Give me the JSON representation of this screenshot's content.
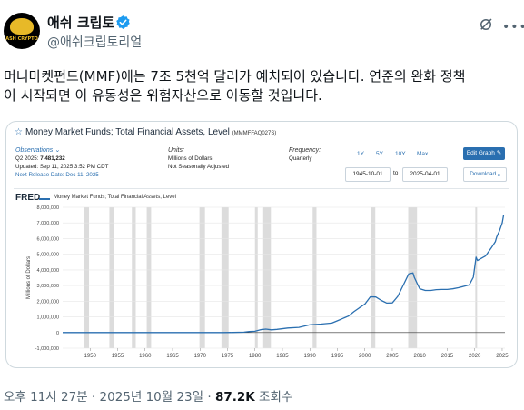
{
  "tweet": {
    "author_name": "애쉬 크립토",
    "handle": "@애쉬크립토리얼",
    "avatar_text": "ASH CRYPTO",
    "text_line1": "머니마켓펀드(MMF)에는 7조 5천억 달러가 예치되어 있습니다. 연준의 완화 정책",
    "text_line2": "이 시작되면 이 유동성은 위험자산으로 이동할 것입니다.",
    "time": "오후 11시 27분",
    "sep1": "·",
    "date": "2025년 10월 23일",
    "sep2": "·",
    "views": "87.2K",
    "views_label": "조회수"
  },
  "fred": {
    "title": "Money Market Funds; Total Financial Assets, Level",
    "series_id": "(MMMFFAQ027S)",
    "observations_label": "Observations",
    "obs_period": "Q2 2025:",
    "obs_value": "7,481,232",
    "updated": "Updated: Sep 11, 2025 3:52 PM CDT",
    "next_release": "Next Release Date: Dec 11, 2025",
    "units_label": "Units:",
    "units_1": "Millions of Dollars,",
    "units_2": "Not Seasonally Adjusted",
    "frequency_label": "Frequency:",
    "frequency": "Quarterly",
    "range_buttons": [
      "1Y",
      "5Y",
      "10Y",
      "Max"
    ],
    "date_from": "1945-10-01",
    "date_to_label": "to",
    "date_to": "2025-04-01",
    "edit_graph": "Edit Graph",
    "download": "Download",
    "logo": "FRED",
    "legend": "Money Market Funds; Total Financial Assets, Level",
    "accent": "#2a6fb0"
  },
  "chart_data": {
    "type": "line",
    "title": "",
    "ylabel": "Millions of Dollars",
    "xlabel": "",
    "ylim": [
      -1000000,
      8000000
    ],
    "xlim": [
      1945,
      2025.5
    ],
    "x_ticks": [
      1950,
      1955,
      1960,
      1965,
      1970,
      1975,
      1980,
      1985,
      1990,
      1995,
      2000,
      2005,
      2010,
      2015,
      2020,
      2025
    ],
    "y_ticks": [
      -1000000,
      0,
      1000000,
      2000000,
      3000000,
      4000000,
      5000000,
      6000000,
      7000000,
      8000000
    ],
    "y_tick_labels": [
      "-1,000,000",
      "0",
      "1,000,000",
      "2,000,000",
      "3,000,000",
      "4,000,000",
      "5,000,000",
      "6,000,000",
      "7,000,000",
      "8,000,000"
    ],
    "recessions": [
      [
        1948.9,
        1949.8
      ],
      [
        1953.5,
        1954.4
      ],
      [
        1957.6,
        1958.3
      ],
      [
        1960.3,
        1961.1
      ],
      [
        1969.9,
        1970.9
      ],
      [
        1973.9,
        1975.2
      ],
      [
        1980.0,
        1980.5
      ],
      [
        1981.5,
        1982.9
      ],
      [
        1990.5,
        1991.2
      ],
      [
        2001.2,
        2001.9
      ],
      [
        2007.9,
        2009.5
      ],
      [
        2020.1,
        2020.4
      ]
    ],
    "series": [
      {
        "color": "#2a6fb0",
        "x": [
          1945,
          1974,
          1976,
          1978,
          1979,
          1980,
          1981,
          1982,
          1983,
          1984,
          1986,
          1988,
          1990,
          1992,
          1994,
          1995,
          1996,
          1997,
          1998,
          1999,
          2000,
          2001,
          2002,
          2003,
          2004,
          2005,
          2006,
          2007,
          2008,
          2008.75,
          2009,
          2009.5,
          2010,
          2011,
          2012,
          2013,
          2014,
          2015,
          2016,
          2017,
          2018,
          2019,
          2019.75,
          2020.25,
          2020.5,
          2021,
          2022,
          2023,
          2023.75,
          2024,
          2024.5,
          2025,
          2025.25
        ],
        "values": [
          0,
          0,
          5000,
          20000,
          60000,
          80000,
          180000,
          220000,
          170000,
          200000,
          290000,
          330000,
          490000,
          540000,
          600000,
          750000,
          900000,
          1050000,
          1330000,
          1580000,
          1810000,
          2280000,
          2270000,
          2050000,
          1880000,
          1890000,
          2310000,
          3030000,
          3750000,
          3810000,
          3530000,
          3150000,
          2800000,
          2690000,
          2690000,
          2740000,
          2750000,
          2750000,
          2790000,
          2860000,
          2950000,
          3040000,
          3530000,
          4810000,
          4600000,
          4700000,
          4900000,
          5400000,
          5800000,
          6100000,
          6500000,
          7000000,
          7481232
        ]
      }
    ]
  }
}
